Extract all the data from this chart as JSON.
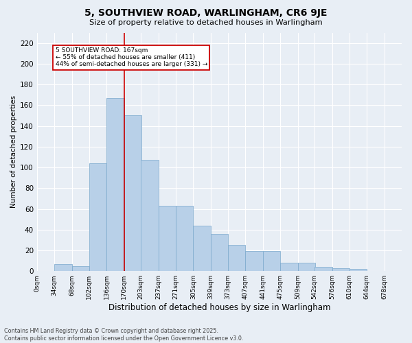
{
  "title": "5, SOUTHVIEW ROAD, WARLINGHAM, CR6 9JE",
  "subtitle": "Size of property relative to detached houses in Warlingham",
  "xlabel": "Distribution of detached houses by size in Warlingham",
  "ylabel": "Number of detached properties",
  "bar_values": [
    0,
    7,
    5,
    104,
    167,
    150,
    107,
    63,
    63,
    44,
    36,
    25,
    19,
    19,
    8,
    8,
    4,
    3,
    2,
    0
  ],
  "bin_labels": [
    "0sqm",
    "34sqm",
    "68sqm",
    "102sqm",
    "136sqm",
    "170sqm",
    "203sqm",
    "237sqm",
    "271sqm",
    "305sqm",
    "339sqm",
    "373sqm",
    "407sqm",
    "441sqm",
    "475sqm",
    "509sqm",
    "542sqm",
    "576sqm",
    "610sqm",
    "644sqm",
    "678sqm"
  ],
  "bar_color": "#b8d0e8",
  "bar_edge_color": "#7aa8cc",
  "property_line_x": 170,
  "property_line_color": "#cc0000",
  "annotation_text": "5 SOUTHVIEW ROAD: 167sqm\n← 55% of detached houses are smaller (411)\n44% of semi-detached houses are larger (331) →",
  "annotation_box_color": "#ffffff",
  "annotation_box_edge": "#cc0000",
  "ylim": [
    0,
    230
  ],
  "yticks": [
    0,
    20,
    40,
    60,
    80,
    100,
    120,
    140,
    160,
    180,
    200,
    220
  ],
  "background_color": "#e8eef5",
  "grid_color": "#ffffff",
  "footer_line1": "Contains HM Land Registry data © Crown copyright and database right 2025.",
  "footer_line2": "Contains public sector information licensed under the Open Government Licence v3.0.",
  "bin_edges": [
    0,
    34,
    68,
    102,
    136,
    170,
    203,
    237,
    271,
    305,
    339,
    373,
    407,
    441,
    475,
    509,
    542,
    576,
    610,
    644,
    678
  ]
}
